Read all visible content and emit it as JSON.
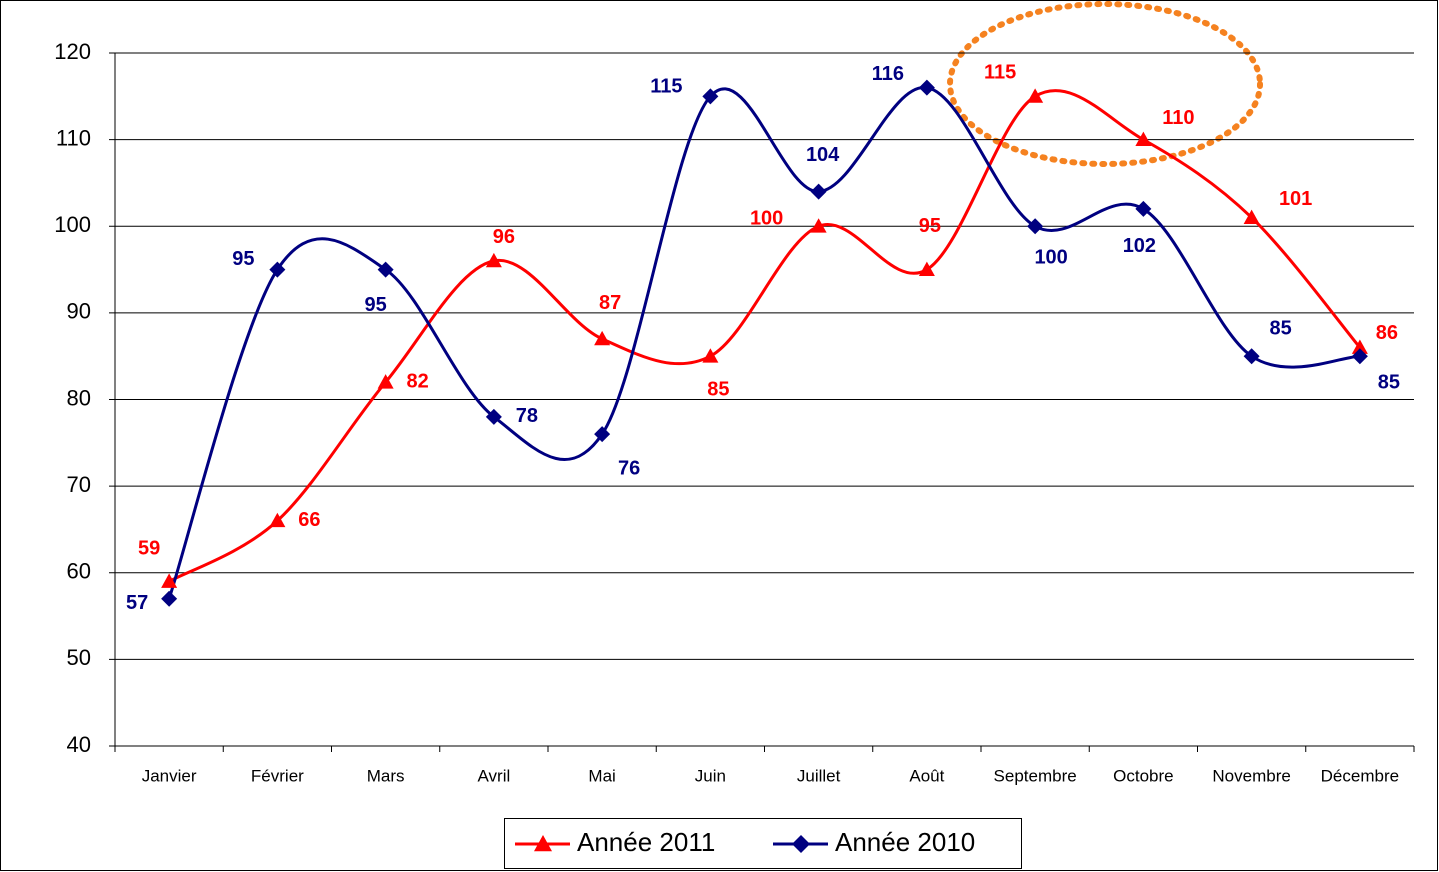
{
  "chart_data": {
    "type": "line",
    "categories": [
      "Janvier",
      "Février",
      "Mars",
      "Avril",
      "Mai",
      "Juin",
      "Juillet",
      "Août",
      "Septembre",
      "Octobre",
      "Novembre",
      "Décembre"
    ],
    "series": [
      {
        "name": "Année 2011",
        "color": "#ff0000",
        "marker": "triangle",
        "values": [
          59,
          66,
          82,
          96,
          87,
          85,
          100,
          95,
          115,
          110,
          101,
          86
        ]
      },
      {
        "name": "Année 2010",
        "color": "#000080",
        "marker": "diamond",
        "values": [
          57,
          95,
          95,
          78,
          76,
          115,
          104,
          116,
          100,
          102,
          85,
          85
        ]
      }
    ],
    "ylim": [
      40,
      120
    ],
    "yticks": [
      40,
      50,
      60,
      70,
      80,
      90,
      100,
      110,
      120
    ],
    "grid": true,
    "legend": "bottom"
  }
}
